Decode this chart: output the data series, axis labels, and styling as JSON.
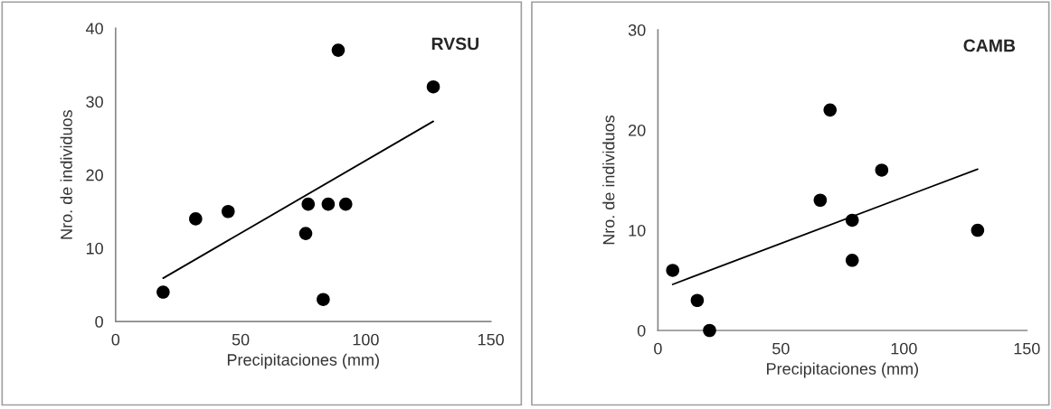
{
  "chart_data": [
    {
      "type": "scatter",
      "title": "RVSU",
      "xlabel": "Precipitaciones (mm)",
      "ylabel": "Nro. de individuos",
      "xlim": [
        0,
        150
      ],
      "xticks": [
        0,
        50,
        100,
        150
      ],
      "ylim": [
        0,
        40
      ],
      "yticks": [
        0,
        10,
        20,
        30,
        40
      ],
      "series": [
        {
          "color": "#000000",
          "marker": "circle",
          "x": [
            19,
            32,
            45,
            76,
            77,
            85,
            92,
            83,
            89,
            127
          ],
          "values": [
            4,
            14,
            15,
            12,
            16,
            16,
            16,
            3,
            37,
            32
          ]
        },
        {
          "type": "line",
          "marker": "none",
          "color": "#000000",
          "x": [
            19,
            127
          ],
          "values": [
            5.9,
            27.3
          ]
        }
      ]
    },
    {
      "type": "scatter",
      "title": "CAMB",
      "xlabel": "Precipitaciones (mm)",
      "ylabel": "Nro. de individuos",
      "xlim": [
        0,
        150
      ],
      "xticks": [
        0,
        50,
        100,
        150
      ],
      "ylim": [
        0,
        30
      ],
      "yticks": [
        0,
        10,
        20,
        30
      ],
      "series": [
        {
          "color": "#000000",
          "marker": "circle",
          "x": [
            6,
            16,
            21,
            66,
            70,
            79,
            79,
            91,
            130
          ],
          "values": [
            6,
            3,
            0,
            13,
            22,
            11,
            7,
            16,
            10
          ]
        },
        {
          "type": "line",
          "marker": "none",
          "color": "#000000",
          "x": [
            6,
            130
          ],
          "values": [
            4.6,
            16.1
          ]
        }
      ]
    }
  ]
}
